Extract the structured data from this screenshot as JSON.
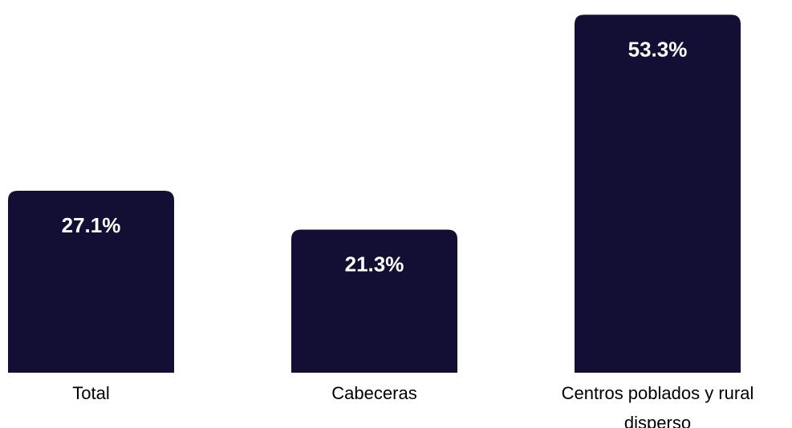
{
  "chart_data": {
    "type": "bar",
    "categories": [
      "Total",
      "Cabeceras",
      "Centros poblados y rural disperso"
    ],
    "category_label_lines": [
      [
        "Total"
      ],
      [
        "Cabeceras"
      ],
      [
        "Centros poblados y rural",
        "disperso"
      ]
    ],
    "values": [
      27.1,
      21.3,
      53.3
    ],
    "value_labels": [
      "27.1%",
      "21.3%",
      "53.3%"
    ],
    "unit": "%",
    "title": "",
    "xlabel": "",
    "ylabel": "",
    "ylim": [
      0,
      55.5
    ],
    "grid": false,
    "legend": "none",
    "bar_color": "#130e34",
    "label_color": "#ffffff"
  }
}
